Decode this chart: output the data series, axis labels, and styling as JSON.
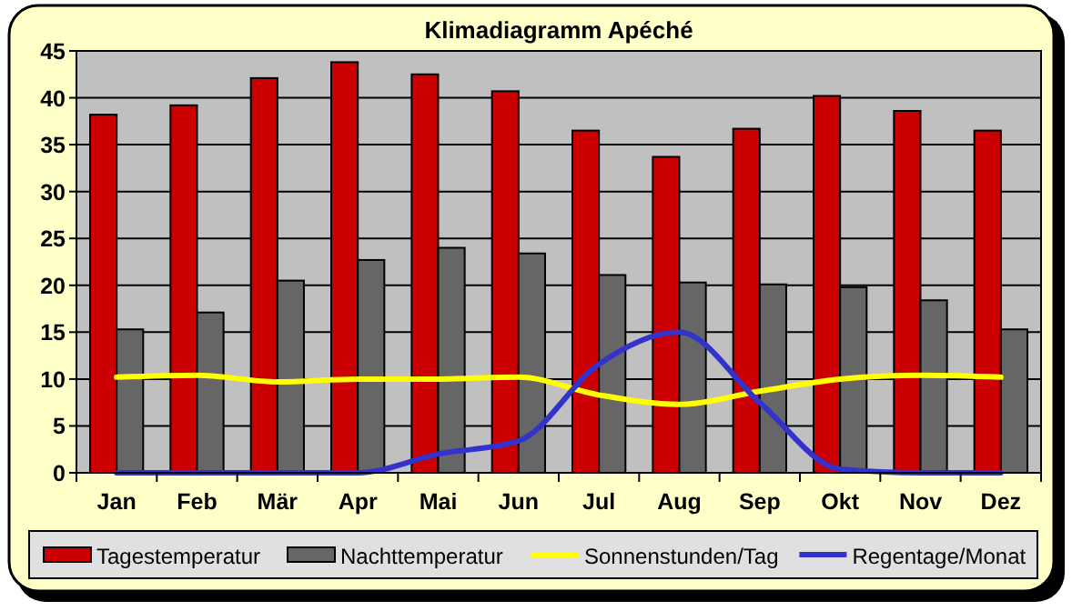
{
  "chart_data": {
    "type": "bar",
    "title": "Klimadiagramm Apéché",
    "categories": [
      "Jan",
      "Feb",
      "Mär",
      "Apr",
      "Mai",
      "Jun",
      "Jul",
      "Aug",
      "Sep",
      "Okt",
      "Nov",
      "Dez"
    ],
    "series": [
      {
        "name": "Tagestemperatur",
        "color": "#cc0000",
        "values": [
          38.2,
          39.2,
          42.1,
          43.8,
          42.5,
          40.7,
          36.5,
          33.7,
          36.7,
          40.2,
          38.6,
          36.5
        ]
      },
      {
        "name": "Nachttemperatur",
        "color": "#666666",
        "values": [
          15.3,
          17.1,
          20.5,
          22.7,
          24.0,
          23.4,
          21.1,
          20.3,
          20.1,
          19.8,
          18.4,
          15.3
        ]
      },
      {
        "name": "Sonnenstunden/Tag",
        "type": "line",
        "color": "#ffff00",
        "values": [
          10.2,
          10.4,
          9.7,
          10.0,
          10.0,
          10.2,
          8.3,
          7.3,
          8.7,
          10.0,
          10.4,
          10.2
        ]
      },
      {
        "name": "Regentage/Monat",
        "type": "line",
        "color": "#3333cc",
        "values": [
          0,
          0,
          0,
          0,
          2,
          3.4,
          11.6,
          15,
          7.5,
          0.4,
          0,
          0
        ]
      }
    ],
    "ylim": [
      0,
      45
    ],
    "yticks": [
      0,
      5,
      10,
      15,
      20,
      25,
      30,
      35,
      40,
      45
    ],
    "grid": "y",
    "legend": "bottom"
  }
}
